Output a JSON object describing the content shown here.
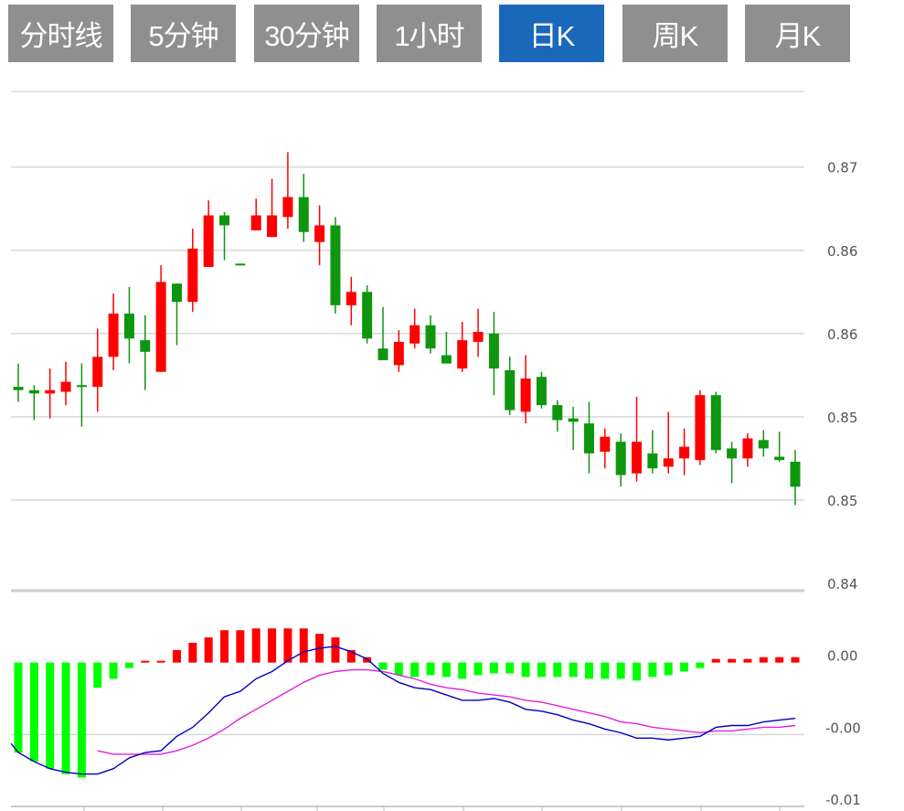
{
  "tabs": [
    {
      "label": "分时线",
      "active": false
    },
    {
      "label": "5分钟",
      "active": false
    },
    {
      "label": "30分钟",
      "active": false
    },
    {
      "label": "1小时",
      "active": false
    },
    {
      "label": "日K",
      "active": true
    },
    {
      "label": "周K",
      "active": false
    },
    {
      "label": "月K",
      "active": false
    }
  ],
  "colors": {
    "up": "#ff0000",
    "down": "#0f960f",
    "hist_up": "#ff0000",
    "hist_down": "#00ff00",
    "dif": "#0000c0",
    "dea": "#e020e0",
    "active_tab": "#1a68b8",
    "tab": "#8f8f8f"
  },
  "chart_data": [
    {
      "type": "candlestick",
      "title": "",
      "ylim": [
        0.8445,
        0.8746
      ],
      "yticks": [
        {
          "value": 0.87,
          "label": "0.87"
        },
        {
          "value": 0.865,
          "label": "0.86"
        },
        {
          "value": 0.86,
          "label": "0.86"
        },
        {
          "value": 0.855,
          "label": "0.85"
        },
        {
          "value": 0.85,
          "label": "0.85"
        },
        {
          "value": 0.845,
          "label": "0.84"
        }
      ],
      "grid": true,
      "ohlc": [
        [
          0.8568,
          0.8582,
          0.8559,
          0.8566
        ],
        [
          0.8566,
          0.8569,
          0.8548,
          0.8564
        ],
        [
          0.8564,
          0.8579,
          0.8549,
          0.8566
        ],
        [
          0.8565,
          0.8583,
          0.8557,
          0.8571
        ],
        [
          0.8569,
          0.8582,
          0.8544,
          0.8568
        ],
        [
          0.8568,
          0.8603,
          0.8553,
          0.8586
        ],
        [
          0.8586,
          0.8624,
          0.8578,
          0.8612
        ],
        [
          0.8612,
          0.8628,
          0.8582,
          0.8597
        ],
        [
          0.8596,
          0.8611,
          0.8566,
          0.8589
        ],
        [
          0.8577,
          0.8641,
          0.8577,
          0.8631
        ],
        [
          0.863,
          0.863,
          0.8593,
          0.8619
        ],
        [
          0.8619,
          0.8663,
          0.8613,
          0.8651
        ],
        [
          0.864,
          0.868,
          0.864,
          0.8671
        ],
        [
          0.8671,
          0.8673,
          0.8644,
          0.8665
        ],
        [
          0.8642,
          0.8642,
          0.8641,
          0.8641
        ],
        [
          0.8662,
          0.8681,
          0.8662,
          0.8671
        ],
        [
          0.8658,
          0.8693,
          0.8658,
          0.8671
        ],
        [
          0.867,
          0.8709,
          0.8663,
          0.8682
        ],
        [
          0.8682,
          0.8696,
          0.8655,
          0.8661
        ],
        [
          0.8655,
          0.8677,
          0.8641,
          0.8665
        ],
        [
          0.8665,
          0.867,
          0.8612,
          0.8617
        ],
        [
          0.8617,
          0.8634,
          0.8605,
          0.8625
        ],
        [
          0.8625,
          0.8629,
          0.8594,
          0.8597
        ],
        [
          0.8591,
          0.8616,
          0.8584,
          0.8584
        ],
        [
          0.8581,
          0.8602,
          0.8577,
          0.8595
        ],
        [
          0.8594,
          0.8615,
          0.8591,
          0.8605
        ],
        [
          0.8605,
          0.8611,
          0.8588,
          0.8591
        ],
        [
          0.8587,
          0.8601,
          0.8582,
          0.8582
        ],
        [
          0.8579,
          0.8607,
          0.8577,
          0.8596
        ],
        [
          0.8595,
          0.8615,
          0.8586,
          0.8601
        ],
        [
          0.86,
          0.8613,
          0.8563,
          0.8579
        ],
        [
          0.8578,
          0.8586,
          0.8551,
          0.8554
        ],
        [
          0.8553,
          0.8587,
          0.8546,
          0.8573
        ],
        [
          0.8574,
          0.8577,
          0.8555,
          0.8557
        ],
        [
          0.8557,
          0.856,
          0.8541,
          0.8548
        ],
        [
          0.8549,
          0.8556,
          0.853,
          0.8547
        ],
        [
          0.8546,
          0.8559,
          0.8516,
          0.8528
        ],
        [
          0.8529,
          0.8543,
          0.8519,
          0.8538
        ],
        [
          0.8535,
          0.854,
          0.8508,
          0.8515
        ],
        [
          0.8516,
          0.8562,
          0.8511,
          0.8535
        ],
        [
          0.8528,
          0.8542,
          0.8516,
          0.8519
        ],
        [
          0.852,
          0.8553,
          0.8516,
          0.8525
        ],
        [
          0.8525,
          0.8543,
          0.8515,
          0.8532
        ],
        [
          0.8524,
          0.8566,
          0.8521,
          0.8563
        ],
        [
          0.8563,
          0.8565,
          0.8528,
          0.853
        ],
        [
          0.8531,
          0.8535,
          0.851,
          0.8525
        ],
        [
          0.8525,
          0.854,
          0.852,
          0.8537
        ],
        [
          0.8536,
          0.8542,
          0.8526,
          0.8531
        ],
        [
          0.8526,
          0.8541,
          0.8523,
          0.8524
        ],
        [
          0.8523,
          0.853,
          0.8497,
          0.8508
        ]
      ]
    },
    {
      "type": "macd",
      "ylim": [
        -0.008,
        0.004
      ],
      "yticks": [
        {
          "value": 0.0,
          "label": "0.00"
        },
        {
          "value": -0.004,
          "label": "-0.00"
        },
        {
          "value": -0.008,
          "label": "-0.01"
        }
      ],
      "histogram": [
        -0.005,
        -0.0055,
        -0.0059,
        -0.0062,
        -0.0064,
        -0.0014,
        -0.0009,
        -0.0003,
        0.0001,
        0.0001,
        0.0007,
        0.0011,
        0.0014,
        0.0018,
        0.0018,
        0.0019,
        0.0019,
        0.0019,
        0.0019,
        0.0016,
        0.0014,
        0.0007,
        0.0003,
        -0.0004,
        -0.0007,
        -0.0008,
        -0.0007,
        -0.0008,
        -0.0009,
        -0.0007,
        -0.0006,
        -0.0006,
        -0.0008,
        -0.0008,
        -0.0008,
        -0.0008,
        -0.0009,
        -0.0009,
        -0.0009,
        -0.001,
        -0.0008,
        -0.0007,
        -0.0005,
        -0.0003,
        0.0002,
        0.0002,
        0.0002,
        0.0003,
        0.0003,
        0.0003
      ],
      "dif": [
        -0.005,
        -0.0055,
        -0.0059,
        -0.0061,
        -0.0062,
        -0.0062,
        -0.0059,
        -0.0053,
        -0.005,
        -0.0049,
        -0.0041,
        -0.0036,
        -0.0028,
        -0.0019,
        -0.0016,
        -0.0009,
        -0.0005,
        0.0001,
        0.0006,
        0.0008,
        0.0009,
        0.0006,
        0.0002,
        -0.0006,
        -0.0011,
        -0.0014,
        -0.0015,
        -0.0018,
        -0.0021,
        -0.0021,
        -0.002,
        -0.0022,
        -0.0026,
        -0.0027,
        -0.0029,
        -0.0032,
        -0.0034,
        -0.0037,
        -0.0039,
        -0.0042,
        -0.0042,
        -0.0043,
        -0.0042,
        -0.0041,
        -0.0036,
        -0.0035,
        -0.0035,
        -0.0033,
        -0.0032,
        -0.0031
      ],
      "dea": [
        null,
        null,
        null,
        null,
        null,
        -0.0049,
        -0.0051,
        -0.0051,
        -0.0051,
        -0.0051,
        -0.0049,
        -0.0046,
        -0.0042,
        -0.0037,
        -0.0031,
        -0.0026,
        -0.0021,
        -0.0016,
        -0.0011,
        -0.0007,
        -0.0005,
        -0.0004,
        -0.0004,
        -0.0005,
        -0.0007,
        -0.0009,
        -0.0012,
        -0.0014,
        -0.0015,
        -0.0017,
        -0.0018,
        -0.0019,
        -0.0021,
        -0.0022,
        -0.0024,
        -0.0026,
        -0.0028,
        -0.003,
        -0.0033,
        -0.0034,
        -0.0036,
        -0.0037,
        -0.0038,
        -0.0039,
        -0.0038,
        -0.0038,
        -0.0037,
        -0.0036,
        -0.0036,
        -0.0035
      ]
    }
  ]
}
